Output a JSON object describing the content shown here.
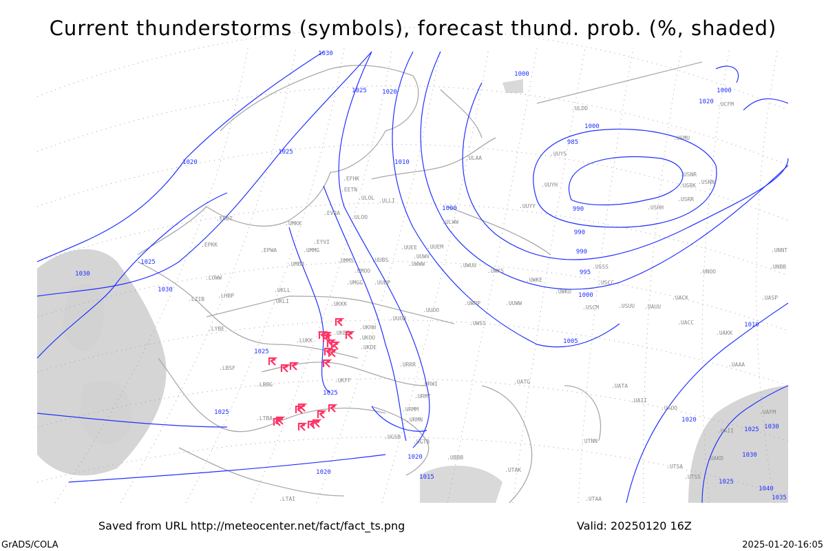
{
  "title": "Current thunderstorms (symbols), forecast thund. prob. (%, shaded)",
  "footer": {
    "source": "Saved from URL http://meteocenter.net/fact/fact_ts.png",
    "valid": "Valid: 20250120 16Z",
    "software": "GrADS/COLA",
    "generated": "2025-01-20-16:05"
  },
  "colors": {
    "isobar": "#1f2fff",
    "coastline": "#a8a8a8",
    "storm_symbol": "#ff3366",
    "shading": "#d0d0d0"
  },
  "isobar_labels": [
    "1030",
    "1025",
    "1020",
    "1025",
    "1020",
    "1010",
    "990",
    "1000",
    "985",
    "990",
    "990",
    "995",
    "1000",
    "1005",
    "1010",
    "1025",
    "1000",
    "1020",
    "1025",
    "1030",
    "1025",
    "1030",
    "1030",
    "1025",
    "1020",
    "1020",
    "1025",
    "1015",
    "1020",
    "1030",
    "1025",
    "1040",
    "1035",
    "1000",
    "1000"
  ],
  "stations": [
    "ULAA",
    "ULOL",
    "EFHK",
    "EETN",
    "ULLI",
    "EVRA",
    "ULOO",
    "UMKK",
    "UMMG",
    "EYVI",
    "EPWA",
    "UMBB",
    "EDDT",
    "EPKK",
    "UKLL",
    "UKLI",
    "LHBP",
    "LOWW",
    "LZIB",
    "LYBE",
    "UKKK",
    "UKBB",
    "UKOO",
    "UKDE",
    "UKFF",
    "LUKK",
    "LBSF",
    "LBBG",
    "LTBA",
    "LTAI",
    "URRR",
    "URWI",
    "URMT",
    "URMM",
    "URMN",
    "UGSB",
    "UGTB",
    "UBBB",
    "UTAK",
    "UUWW",
    "UUEE",
    "UUYY",
    "UUYH",
    "ULWW",
    "UWWW",
    "UWUU",
    "UWPP",
    "UWSS",
    "UWKE",
    "UWKS",
    "UWKD",
    "USSS",
    "USCC",
    "USCM",
    "USUU",
    "UATG",
    "UATA",
    "UACC",
    "UAKK",
    "UAAA",
    "UTNN",
    "UTSA",
    "UTSS",
    "UTAA",
    "UAOO",
    "UAFM",
    "USRR",
    "USHH",
    "USRK",
    "USNN",
    "USNR",
    "USMU",
    "UUYS",
    "ULDD",
    "UCFM",
    "UAII",
    "UAKD",
    "UAUU",
    "UNOO",
    "UACK",
    "UASP",
    "UNBB",
    "UNNT",
    "UAII",
    "UKHH",
    "UUOO",
    "UUOB",
    "UUBP",
    "UMGG",
    "UMMS",
    "UMOO",
    "UUBS",
    "UUEM",
    "UUWV"
  ],
  "storm_count": 22
}
